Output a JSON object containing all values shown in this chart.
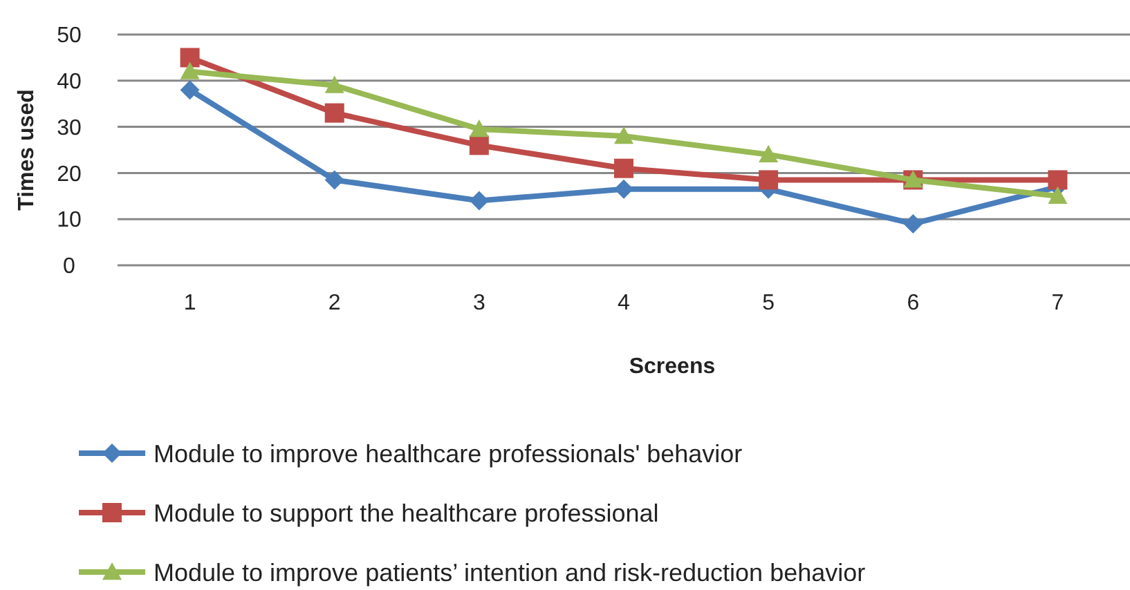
{
  "chart_data": {
    "type": "line",
    "xlabel": "Screens",
    "ylabel": "Times used",
    "categories": [
      "1",
      "2",
      "3",
      "4",
      "5",
      "6",
      "7"
    ],
    "ylim": [
      0,
      50
    ],
    "yticks": [
      0,
      10,
      20,
      30,
      40,
      50
    ],
    "grid": "y",
    "legend": "bottom",
    "series": [
      {
        "name": "Module to improve healthcare professionals' behavior",
        "color": "#4a7ebb",
        "marker": "diamond",
        "values": [
          38,
          18.5,
          14,
          16.5,
          16.5,
          9,
          17
        ]
      },
      {
        "name": "Module to support the healthcare professional",
        "color": "#be4b48",
        "marker": "square",
        "values": [
          45,
          33,
          26,
          21,
          18.5,
          18.5,
          18.5
        ]
      },
      {
        "name": "Module to improve patients’ intention and risk-reduction behavior",
        "color": "#98b954",
        "marker": "triangle",
        "values": [
          42,
          39,
          29.5,
          28,
          24,
          18.5,
          15
        ]
      }
    ]
  }
}
